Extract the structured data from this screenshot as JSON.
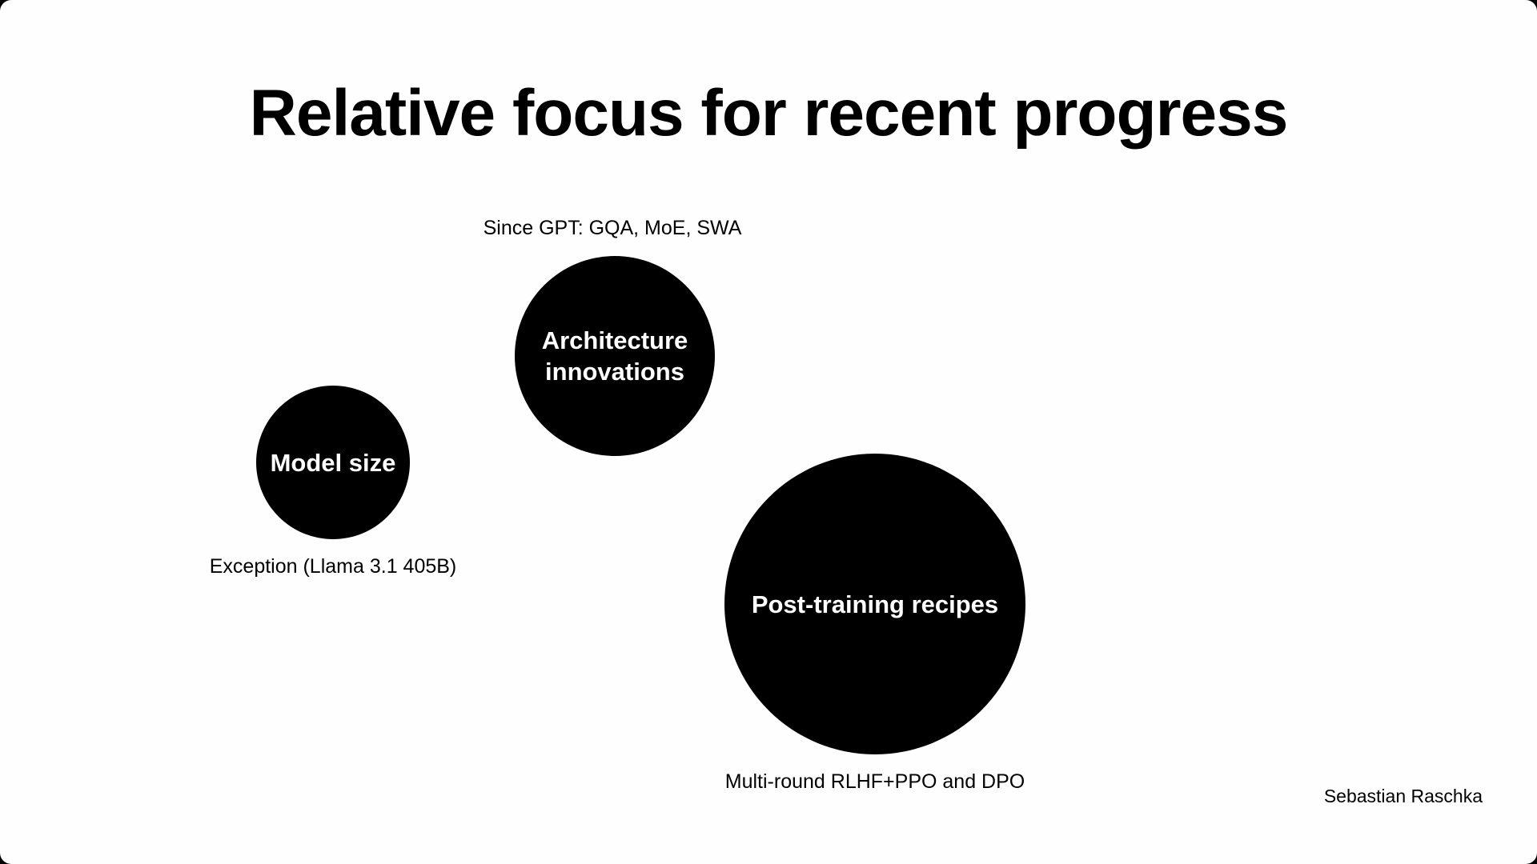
{
  "slide": {
    "title": "Relative focus for recent progress",
    "author": "Sebastian Raschka"
  },
  "bubbles": [
    {
      "id": "model-size",
      "label": "Model size",
      "note": "Exception (Llama 3.1 405B)"
    },
    {
      "id": "architecture",
      "label": "Architecture\ninnovations",
      "note": "Since GPT: GQA, MoE, SWA"
    },
    {
      "id": "post-training",
      "label": "Post-training recipes",
      "note": "Multi-round RLHF+PPO and DPO"
    }
  ],
  "colors": {
    "background": "#fefefe",
    "bubble_fill": "#000000",
    "bubble_text": "#ffffff",
    "text": "#000000"
  }
}
